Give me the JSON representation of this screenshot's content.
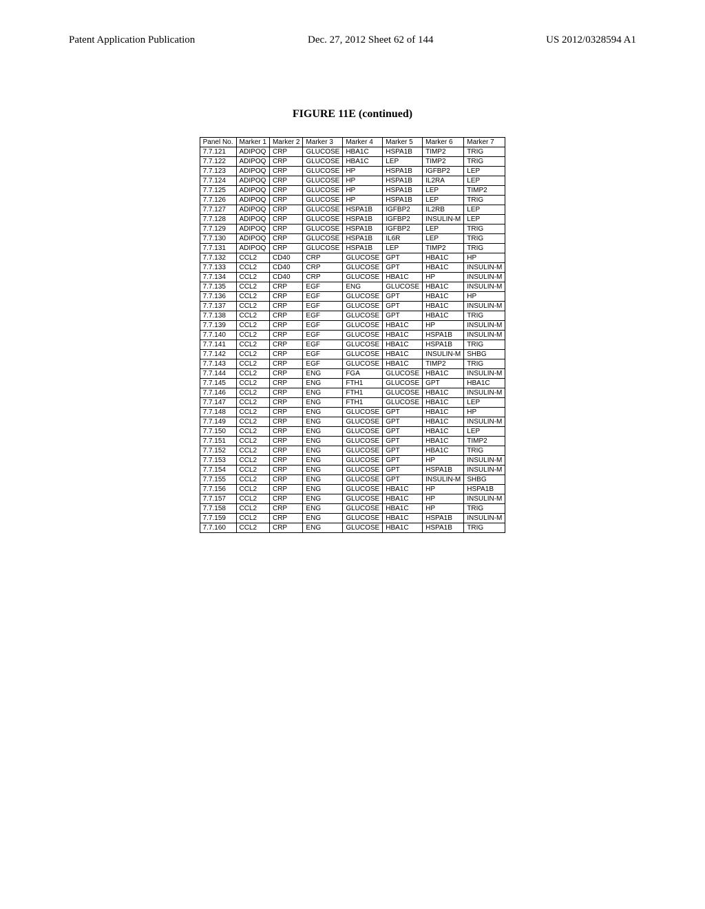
{
  "header": {
    "left": "Patent Application Publication",
    "center": "Dec. 27, 2012  Sheet 62 of 144",
    "right": "US 2012/0328594 A1"
  },
  "figure_title": "FIGURE 11E (continued)",
  "table": {
    "columns": [
      "Panel No.",
      "Marker 1",
      "Marker 2",
      "Marker 3",
      "Marker 4",
      "Marker 5",
      "Marker 6",
      "Marker 7"
    ],
    "rows": [
      [
        "7.7.121",
        "ADIPOQ",
        "CRP",
        "GLUCOSE",
        "HBA1C",
        "HSPA1B",
        "TIMP2",
        "TRIG"
      ],
      [
        "7.7.122",
        "ADIPOQ",
        "CRP",
        "GLUCOSE",
        "HBA1C",
        "LEP",
        "TIMP2",
        "TRIG"
      ],
      [
        "7.7.123",
        "ADIPOQ",
        "CRP",
        "GLUCOSE",
        "HP",
        "HSPA1B",
        "IGFBP2",
        "LEP"
      ],
      [
        "7.7.124",
        "ADIPOQ",
        "CRP",
        "GLUCOSE",
        "HP",
        "HSPA1B",
        "IL2RA",
        "LEP"
      ],
      [
        "7.7.125",
        "ADIPOQ",
        "CRP",
        "GLUCOSE",
        "HP",
        "HSPA1B",
        "LEP",
        "TIMP2"
      ],
      [
        "7.7.126",
        "ADIPOQ",
        "CRP",
        "GLUCOSE",
        "HP",
        "HSPA1B",
        "LEP",
        "TRIG"
      ],
      [
        "7.7.127",
        "ADIPOQ",
        "CRP",
        "GLUCOSE",
        "HSPA1B",
        "IGFBP2",
        "IL2RB",
        "LEP"
      ],
      [
        "7.7.128",
        "ADIPOQ",
        "CRP",
        "GLUCOSE",
        "HSPA1B",
        "IGFBP2",
        "INSULIN-M",
        "LEP"
      ],
      [
        "7.7.129",
        "ADIPOQ",
        "CRP",
        "GLUCOSE",
        "HSPA1B",
        "IGFBP2",
        "LEP",
        "TRIG"
      ],
      [
        "7.7.130",
        "ADIPOQ",
        "CRP",
        "GLUCOSE",
        "HSPA1B",
        "IL6R",
        "LEP",
        "TRIG"
      ],
      [
        "7.7.131",
        "ADIPOQ",
        "CRP",
        "GLUCOSE",
        "HSPA1B",
        "LEP",
        "TIMP2",
        "TRIG"
      ],
      [
        "7.7.132",
        "CCL2",
        "CD40",
        "CRP",
        "GLUCOSE",
        "GPT",
        "HBA1C",
        "HP"
      ],
      [
        "7.7.133",
        "CCL2",
        "CD40",
        "CRP",
        "GLUCOSE",
        "GPT",
        "HBA1C",
        "INSULIN-M"
      ],
      [
        "7.7.134",
        "CCL2",
        "CD40",
        "CRP",
        "GLUCOSE",
        "HBA1C",
        "HP",
        "INSULIN-M"
      ],
      [
        "7.7.135",
        "CCL2",
        "CRP",
        "EGF",
        "ENG",
        "GLUCOSE",
        "HBA1C",
        "INSULIN-M"
      ],
      [
        "7.7.136",
        "CCL2",
        "CRP",
        "EGF",
        "GLUCOSE",
        "GPT",
        "HBA1C",
        "HP"
      ],
      [
        "7.7.137",
        "CCL2",
        "CRP",
        "EGF",
        "GLUCOSE",
        "GPT",
        "HBA1C",
        "INSULIN-M"
      ],
      [
        "7.7.138",
        "CCL2",
        "CRP",
        "EGF",
        "GLUCOSE",
        "GPT",
        "HBA1C",
        "TRIG"
      ],
      [
        "7.7.139",
        "CCL2",
        "CRP",
        "EGF",
        "GLUCOSE",
        "HBA1C",
        "HP",
        "INSULIN-M"
      ],
      [
        "7.7.140",
        "CCL2",
        "CRP",
        "EGF",
        "GLUCOSE",
        "HBA1C",
        "HSPA1B",
        "INSULIN-M"
      ],
      [
        "7.7.141",
        "CCL2",
        "CRP",
        "EGF",
        "GLUCOSE",
        "HBA1C",
        "HSPA1B",
        "TRIG"
      ],
      [
        "7.7.142",
        "CCL2",
        "CRP",
        "EGF",
        "GLUCOSE",
        "HBA1C",
        "INSULIN-M",
        "SHBG"
      ],
      [
        "7.7.143",
        "CCL2",
        "CRP",
        "EGF",
        "GLUCOSE",
        "HBA1C",
        "TIMP2",
        "TRIG"
      ],
      [
        "7.7.144",
        "CCL2",
        "CRP",
        "ENG",
        "FGA",
        "GLUCOSE",
        "HBA1C",
        "INSULIN-M"
      ],
      [
        "7.7.145",
        "CCL2",
        "CRP",
        "ENG",
        "FTH1",
        "GLUCOSE",
        "GPT",
        "HBA1C"
      ],
      [
        "7.7.146",
        "CCL2",
        "CRP",
        "ENG",
        "FTH1",
        "GLUCOSE",
        "HBA1C",
        "INSULIN-M"
      ],
      [
        "7.7.147",
        "CCL2",
        "CRP",
        "ENG",
        "FTH1",
        "GLUCOSE",
        "HBA1C",
        "LEP"
      ],
      [
        "7.7.148",
        "CCL2",
        "CRP",
        "ENG",
        "GLUCOSE",
        "GPT",
        "HBA1C",
        "HP"
      ],
      [
        "7.7.149",
        "CCL2",
        "CRP",
        "ENG",
        "GLUCOSE",
        "GPT",
        "HBA1C",
        "INSULIN-M"
      ],
      [
        "7.7.150",
        "CCL2",
        "CRP",
        "ENG",
        "GLUCOSE",
        "GPT",
        "HBA1C",
        "LEP"
      ],
      [
        "7.7.151",
        "CCL2",
        "CRP",
        "ENG",
        "GLUCOSE",
        "GPT",
        "HBA1C",
        "TIMP2"
      ],
      [
        "7.7.152",
        "CCL2",
        "CRP",
        "ENG",
        "GLUCOSE",
        "GPT",
        "HBA1C",
        "TRIG"
      ],
      [
        "7.7.153",
        "CCL2",
        "CRP",
        "ENG",
        "GLUCOSE",
        "GPT",
        "HP",
        "INSULIN-M"
      ],
      [
        "7.7.154",
        "CCL2",
        "CRP",
        "ENG",
        "GLUCOSE",
        "GPT",
        "HSPA1B",
        "INSULIN-M"
      ],
      [
        "7.7.155",
        "CCL2",
        "CRP",
        "ENG",
        "GLUCOSE",
        "GPT",
        "INSULIN-M",
        "SHBG"
      ],
      [
        "7.7.156",
        "CCL2",
        "CRP",
        "ENG",
        "GLUCOSE",
        "HBA1C",
        "HP",
        "HSPA1B"
      ],
      [
        "7.7.157",
        "CCL2",
        "CRP",
        "ENG",
        "GLUCOSE",
        "HBA1C",
        "HP",
        "INSULIN-M"
      ],
      [
        "7.7.158",
        "CCL2",
        "CRP",
        "ENG",
        "GLUCOSE",
        "HBA1C",
        "HP",
        "TRIG"
      ],
      [
        "7.7.159",
        "CCL2",
        "CRP",
        "ENG",
        "GLUCOSE",
        "HBA1C",
        "HSPA1B",
        "INSULIN-M"
      ],
      [
        "7.7.160",
        "CCL2",
        "CRP",
        "ENG",
        "GLUCOSE",
        "HBA1C",
        "HSPA1B",
        "TRIG"
      ]
    ]
  }
}
